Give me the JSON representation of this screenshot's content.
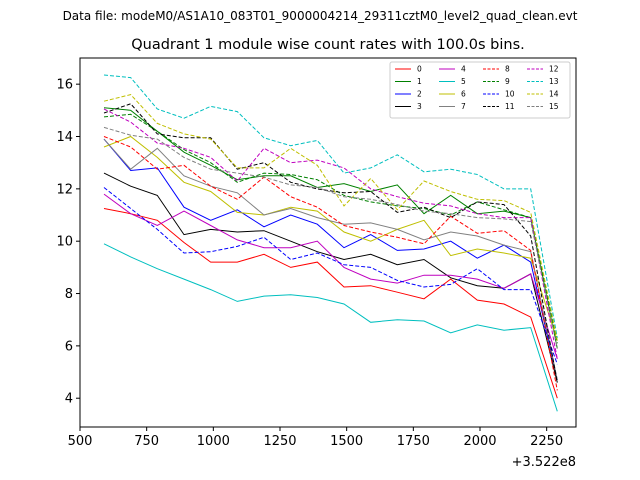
{
  "supertitle": "Data file: modeM0/AS1A10_083T01_9000004214_29311cztM0_level2_quad_clean.evt",
  "chart_data": {
    "type": "line",
    "title": "Quadrant 1 module wise count rates with 100.0s bins.",
    "xlabel": "",
    "ylabel": "",
    "x_offset_label": "+3.522e8",
    "xlim": [
      500,
      2360
    ],
    "ylim": [
      2.9,
      17.0
    ],
    "xticks": [
      500,
      750,
      1000,
      1250,
      1500,
      1750,
      2000,
      2250
    ],
    "yticks": [
      4,
      6,
      8,
      10,
      12,
      14,
      16
    ],
    "legend_position": "upper-right",
    "legend_columns": 4,
    "x": [
      590,
      690,
      790,
      890,
      990,
      1090,
      1190,
      1290,
      1390,
      1490,
      1590,
      1690,
      1790,
      1890,
      1990,
      2090,
      2190,
      2290
    ],
    "series": [
      {
        "name": "0",
        "color": "#ff0000",
        "dash": "solid",
        "values": [
          11.25,
          11.05,
          10.8,
          9.95,
          9.2,
          9.2,
          9.5,
          9.0,
          9.2,
          8.25,
          8.3,
          8.05,
          7.8,
          8.55,
          7.75,
          7.6,
          7.1,
          4.0
        ]
      },
      {
        "name": "1",
        "color": "#008000",
        "dash": "solid",
        "values": [
          15.1,
          15.0,
          14.2,
          13.4,
          12.9,
          12.35,
          12.5,
          12.5,
          12.05,
          12.2,
          11.9,
          12.15,
          11.05,
          11.75,
          11.05,
          11.15,
          10.9,
          5.9
        ]
      },
      {
        "name": "2",
        "color": "#0000ff",
        "dash": "solid",
        "values": [
          13.9,
          12.7,
          12.8,
          11.3,
          10.8,
          11.2,
          10.55,
          11.0,
          10.65,
          9.75,
          10.25,
          9.65,
          9.7,
          10.0,
          9.35,
          9.85,
          9.2,
          4.7
        ]
      },
      {
        "name": "3",
        "color": "#000000",
        "dash": "solid",
        "values": [
          12.6,
          12.1,
          11.75,
          10.25,
          10.45,
          10.35,
          10.4,
          10.0,
          9.6,
          9.3,
          9.5,
          9.1,
          9.3,
          8.6,
          8.3,
          8.2,
          8.75,
          4.6
        ]
      },
      {
        "name": "4",
        "color": "#bf00bf",
        "dash": "solid",
        "values": [
          11.8,
          11.05,
          10.6,
          11.15,
          10.6,
          10.05,
          9.75,
          9.75,
          10.0,
          9.0,
          8.55,
          8.4,
          8.7,
          8.7,
          8.55,
          8.2,
          8.75,
          5.5
        ]
      },
      {
        "name": "5",
        "color": "#00bfbf",
        "dash": "solid",
        "values": [
          9.9,
          9.4,
          8.95,
          8.55,
          8.15,
          7.7,
          7.9,
          7.95,
          7.85,
          7.6,
          6.9,
          7.0,
          6.95,
          6.5,
          6.8,
          6.6,
          6.7,
          3.5
        ]
      },
      {
        "name": "6",
        "color": "#bfbf00",
        "dash": "solid",
        "values": [
          13.6,
          14.0,
          13.2,
          12.25,
          11.9,
          11.1,
          11.0,
          11.3,
          11.15,
          10.35,
          10.0,
          10.45,
          10.8,
          9.45,
          9.7,
          9.55,
          9.35,
          6.2
        ]
      },
      {
        "name": "7",
        "color": "#808080",
        "dash": "solid",
        "values": [
          13.9,
          12.75,
          13.55,
          12.5,
          12.1,
          11.85,
          11.0,
          11.25,
          10.9,
          10.65,
          10.7,
          10.45,
          10.05,
          10.35,
          10.2,
          9.85,
          9.6,
          4.7
        ]
      },
      {
        "name": "8",
        "color": "#ff0000",
        "dash": "dashed",
        "values": [
          14.0,
          13.6,
          12.75,
          12.9,
          12.1,
          11.6,
          12.45,
          11.7,
          11.3,
          10.6,
          10.35,
          10.15,
          9.9,
          10.95,
          10.3,
          10.4,
          9.65,
          4.3
        ]
      },
      {
        "name": "9",
        "color": "#008000",
        "dash": "dashed",
        "values": [
          14.75,
          14.85,
          14.2,
          13.5,
          13.0,
          12.25,
          12.6,
          12.55,
          12.35,
          11.75,
          11.5,
          11.35,
          11.25,
          11.0,
          11.5,
          11.2,
          10.9,
          6.1
        ]
      },
      {
        "name": "10",
        "color": "#0000ff",
        "dash": "dashed",
        "values": [
          12.05,
          11.25,
          10.45,
          9.55,
          9.6,
          9.8,
          10.15,
          9.3,
          9.55,
          9.1,
          9.0,
          8.5,
          8.25,
          8.35,
          8.95,
          8.15,
          8.15,
          5.3
        ]
      },
      {
        "name": "11",
        "color": "#000000",
        "dash": "dashed",
        "values": [
          14.9,
          15.25,
          14.1,
          13.95,
          13.95,
          12.75,
          13.0,
          12.25,
          12.0,
          11.85,
          11.9,
          11.1,
          11.3,
          10.9,
          11.5,
          11.4,
          10.2,
          4.6
        ]
      },
      {
        "name": "12",
        "color": "#bf00bf",
        "dash": "dashed",
        "values": [
          15.05,
          14.55,
          13.75,
          13.55,
          13.2,
          12.3,
          13.55,
          13.0,
          13.1,
          12.8,
          12.0,
          11.7,
          11.45,
          11.35,
          11.05,
          10.9,
          10.9,
          5.5
        ]
      },
      {
        "name": "13",
        "color": "#00bfbf",
        "dash": "dashed",
        "values": [
          16.35,
          16.25,
          15.05,
          14.7,
          15.15,
          14.95,
          13.95,
          13.65,
          13.85,
          12.6,
          12.8,
          13.3,
          12.65,
          12.75,
          12.55,
          12.0,
          12.0,
          6.3
        ]
      },
      {
        "name": "14",
        "color": "#bfbf00",
        "dash": "dashed",
        "values": [
          15.35,
          15.6,
          14.5,
          14.1,
          13.9,
          12.8,
          12.8,
          13.55,
          12.9,
          11.35,
          12.4,
          11.2,
          12.3,
          11.9,
          11.6,
          11.55,
          11.1,
          6.2
        ]
      },
      {
        "name": "15",
        "color": "#808080",
        "dash": "dashed",
        "values": [
          14.35,
          14.05,
          13.9,
          13.2,
          12.75,
          12.6,
          12.45,
          12.15,
          12.05,
          11.7,
          11.6,
          11.4,
          11.15,
          11.05,
          10.9,
          10.85,
          10.75,
          5.9
        ]
      }
    ]
  }
}
